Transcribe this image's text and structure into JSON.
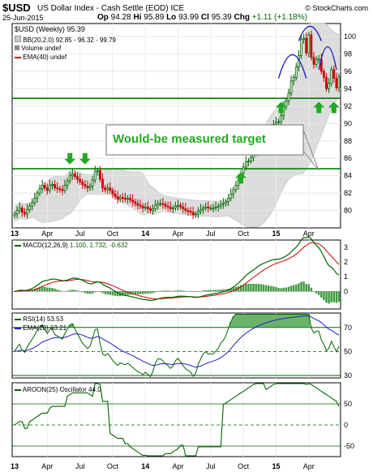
{
  "header": {
    "symbol": "$USD",
    "name": "US Dollar Index - Cash Settle (EOD) ICE",
    "date": "25-Jun-2015",
    "open": "94.28",
    "high": "95.89",
    "low": "93.99",
    "close": "95.39",
    "change": "+1.11 (+1.18%)",
    "brand": "© StockCharts.com",
    "labels": {
      "open": "Op",
      "high": "Hi",
      "low": "Lo",
      "close": "Cl",
      "change": "Chg"
    }
  },
  "legend": {
    "main": "$USD (Weekly) 95.39",
    "bb": "BB(20,2.0) 92.85 - 96.32 - 99.79",
    "volume": "Volume undef",
    "ema": "EMA(40) undef",
    "macd_name": "MACD(12,26,9)",
    "macd_vals": "1.100, 1.732, -0.632",
    "rsi": "RSI(14) 53.53",
    "rsi_ema": "EMA(20) 63.21",
    "aroon": "AROON(25) Oscillator 44.0"
  },
  "annotation": "Would-be measured target",
  "colors": {
    "up": "#006400",
    "down": "#cc0000",
    "line": "#008000",
    "arc": "#1f1fbf",
    "band": "#dcdcdc",
    "macd": "#006400",
    "signal": "#cc0000",
    "rsi_ema": "#1f1fbf"
  },
  "icons": [
    "down-arrow-icon",
    "up-arrow-icon"
  ],
  "chart_data": [
    {
      "type": "candlestick",
      "title": "$USD (Weekly) 95.39",
      "ylim": [
        78,
        101.5
      ],
      "yticks": [
        80,
        82,
        84,
        86,
        88,
        90,
        92,
        94,
        96,
        98,
        100
      ],
      "xticks": [
        "13",
        "Apr",
        "Jul",
        "Oct",
        "14",
        "Apr",
        "Jul",
        "Oct",
        "15",
        "Apr"
      ],
      "weeks": 130,
      "close": [
        79.6,
        80.0,
        80.3,
        79.8,
        79.6,
        80.1,
        80.5,
        80.9,
        81.4,
        82.0,
        82.5,
        82.9,
        82.6,
        82.3,
        82.9,
        83.0,
        82.6,
        82.5,
        82.4,
        82.3,
        82.9,
        83.4,
        84.0,
        84.2,
        83.9,
        83.6,
        83.3,
        83.0,
        82.8,
        82.6,
        82.8,
        83.5,
        84.5,
        84.6,
        83.6,
        82.6,
        82.4,
        82.6,
        82.3,
        81.9,
        81.6,
        81.3,
        81.5,
        81.4,
        81.3,
        81.4,
        81.2,
        81.0,
        80.8,
        80.6,
        80.5,
        80.3,
        80.4,
        80.2,
        80.0,
        80.2,
        80.6,
        80.8,
        80.8,
        80.7,
        80.5,
        80.4,
        80.2,
        80.3,
        80.5,
        80.6,
        80.4,
        80.2,
        80.0,
        79.9,
        79.8,
        79.5,
        79.6,
        79.9,
        80.1,
        80.3,
        80.4,
        80.3,
        80.3,
        80.3,
        80.4,
        80.5,
        80.7,
        80.8,
        81.0,
        81.4,
        81.9,
        82.4,
        82.9,
        83.5,
        84.3,
        85.0,
        85.6,
        85.7,
        86.1,
        86.6,
        87.3,
        87.8,
        88.1,
        88.4,
        88.7,
        89.2,
        89.6,
        89.9,
        90.1,
        90.2,
        90.9,
        91.9,
        92.6,
        93.5,
        94.9,
        95.3,
        96.5,
        97.8,
        99.7,
        99.8,
        98.1,
        100.2,
        97.6,
        96.8,
        97.4,
        97.4,
        96.0,
        95.3,
        94.0,
        94.6,
        96.2,
        95.2,
        94.1,
        95.39
      ],
      "support_lines": [
        92.9,
        84.8
      ],
      "bollinger": {
        "lower": 92.85,
        "middle": 96.32,
        "upper": 99.79
      },
      "annotations": [
        "Would-be measured target"
      ]
    },
    {
      "type": "line",
      "title": "MACD(12,26,9)",
      "ylim": [
        -1.2,
        3.5
      ],
      "yticks": [
        0,
        1,
        2,
        3
      ],
      "series": [
        {
          "name": "MACD",
          "last": 1.1
        },
        {
          "name": "Signal",
          "last": 1.732
        },
        {
          "name": "Histogram",
          "last": -0.632
        }
      ]
    },
    {
      "type": "line",
      "title": "RSI(14)",
      "ylim": [
        28,
        82
      ],
      "yticks": [
        30,
        50,
        70
      ],
      "ref_lines": [
        70,
        30
      ],
      "series": [
        {
          "name": "RSI(14)",
          "last": 53.53
        },
        {
          "name": "EMA(20)",
          "last": 63.21
        }
      ]
    },
    {
      "type": "line",
      "title": "AROON(25) Oscillator",
      "ylim": [
        -75,
        100
      ],
      "yticks": [
        -50,
        0,
        50
      ],
      "series": [
        {
          "name": "AROON(25) Oscillator",
          "last": 44.0
        }
      ]
    }
  ]
}
